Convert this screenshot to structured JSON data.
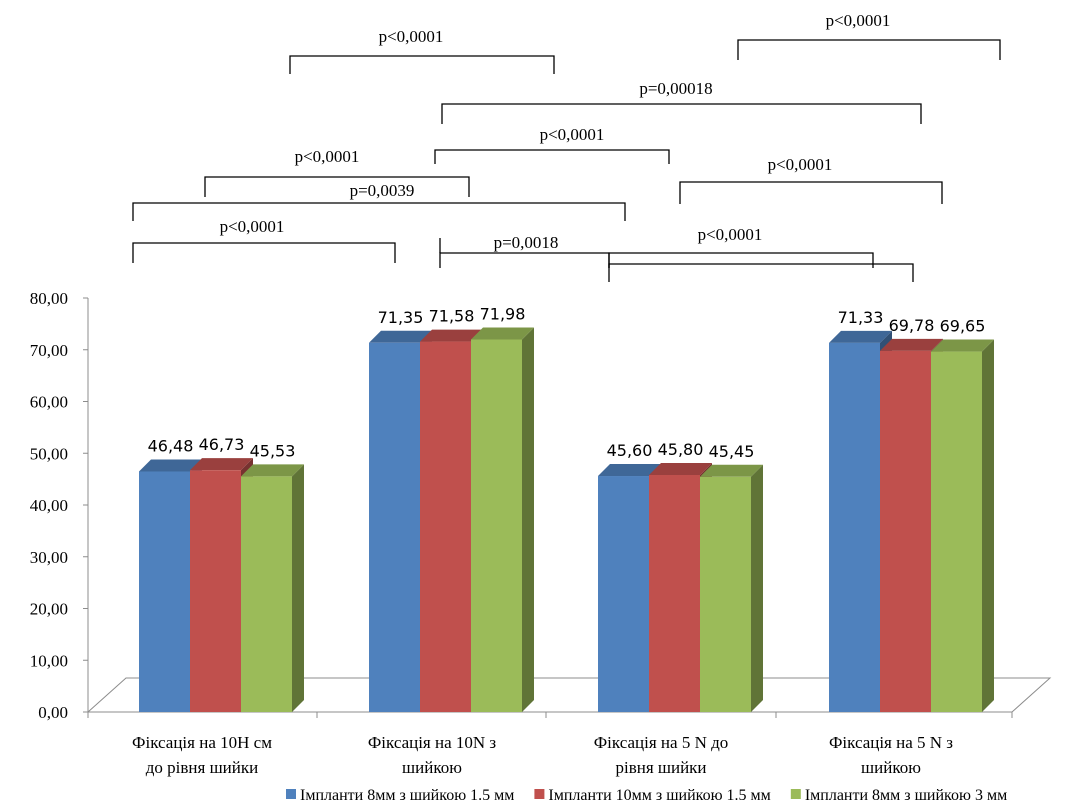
{
  "chart_data": {
    "type": "bar",
    "style": "3d-clustered-column",
    "categories": [
      [
        "Фіксація на 10Н см",
        "до рівня шийки"
      ],
      [
        "Фіксація на 10N з",
        "шийкою"
      ],
      [
        "Фіксація на 5 N до",
        "рівня шийки"
      ],
      [
        "Фіксація на 5 N з",
        "шийкою"
      ]
    ],
    "series": [
      {
        "name": "Імпланти 8мм з шийкою 1.5 мм",
        "color": "#4f81bd",
        "values": [
          46.48,
          71.35,
          45.6,
          71.33
        ]
      },
      {
        "name": "Імпланти 10мм з шийкою 1.5 мм",
        "color": "#c0504d",
        "values": [
          46.73,
          71.58,
          45.8,
          69.78
        ]
      },
      {
        "name": "Імпланти 8мм з шийкою 3 мм",
        "color": "#9bbb59",
        "values": [
          45.53,
          71.98,
          45.45,
          69.65
        ]
      }
    ],
    "data_labels": [
      [
        "46,48",
        "71,35",
        "45,60",
        "71,33"
      ],
      [
        "46,73",
        "71,58",
        "45,80",
        "69,78"
      ],
      [
        "45,53",
        "71,98",
        "45,45",
        "69,65"
      ]
    ],
    "ylim": [
      0,
      80
    ],
    "yticks": [
      "0,00",
      "10,00",
      "20,00",
      "30,00",
      "40,00",
      "50,00",
      "60,00",
      "70,00",
      "80,00"
    ],
    "grid": false,
    "legend_position": "bottom",
    "significance_brackets": [
      {
        "label": "p<0,0001",
        "from": [
          0,
          0
        ],
        "to": [
          1,
          0
        ]
      },
      {
        "label": "p=0,0039",
        "from": [
          0,
          0
        ],
        "to": [
          2,
          1
        ]
      },
      {
        "label": "p<0,0001",
        "from": [
          0,
          1
        ],
        "to": [
          1,
          2
        ]
      },
      {
        "label": "p<0,0001",
        "from": [
          0,
          2
        ],
        "to": [
          2,
          0
        ]
      },
      {
        "label": "p=0,0018",
        "from": [
          1,
          2
        ],
        "to": [
          2,
          0
        ]
      },
      {
        "label": "p<0,0001",
        "from": [
          1,
          1
        ],
        "to": [
          2,
          1
        ]
      },
      {
        "label": "p=0,00018",
        "from": [
          1,
          1
        ],
        "to": [
          3,
          1
        ]
      },
      {
        "label": "p<0,0001",
        "from": [
          2,
          1
        ],
        "to": [
          3,
          2
        ]
      },
      {
        "label": "p<0,0001",
        "from": [
          3,
          0
        ],
        "to": [
          3,
          1
        ]
      },
      {
        "label": "p<0,0001",
        "from": [
          2,
          0
        ],
        "to": [
          3,
          1
        ]
      },
      {
        "label": "p<0,0001",
        "from": [
          2,
          2
        ],
        "to": [
          3,
          2
        ]
      }
    ]
  }
}
